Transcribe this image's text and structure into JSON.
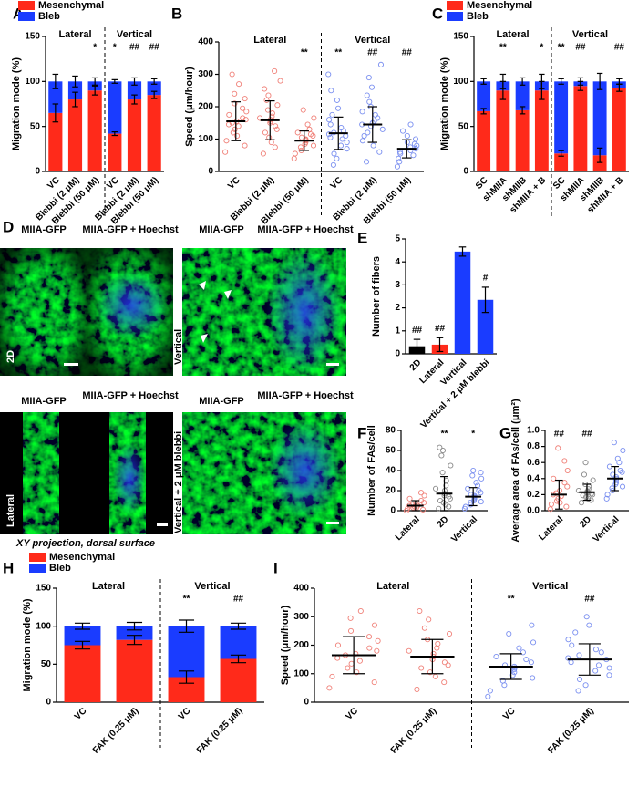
{
  "chart_data": [
    {
      "panel": "A",
      "type": "stacked_bar",
      "ylabel": "Migration mode (%)",
      "ylim": [
        0,
        150
      ],
      "yticks": [
        0,
        50,
        100,
        150
      ],
      "categories": [
        "VC",
        "Blebbi (2 μM)",
        "Blebbi (50 μM)",
        "VC",
        "Blebbi (2 μM)",
        "Blebbi (50 μM)"
      ],
      "group_labels": [
        "Lateral",
        "Vertical"
      ],
      "significance": [
        null,
        null,
        "*",
        "*",
        "##",
        "##"
      ],
      "legend": "top-left",
      "series": [
        {
          "name": "Mesenchymal",
          "color": "#ff2a1a",
          "values": [
            65,
            80,
            90,
            42,
            80,
            85
          ],
          "errors": [
            10,
            8,
            5,
            2,
            5,
            4
          ]
        },
        {
          "name": "Bleb",
          "color": "#1a3cff",
          "values": [
            35,
            20,
            10,
            58,
            20,
            15
          ],
          "errors": [
            8,
            6,
            4,
            2,
            4,
            3
          ]
        }
      ]
    },
    {
      "panel": "B",
      "type": "strip",
      "ylabel": "Speed (μm/hour)",
      "ylim": [
        0,
        400
      ],
      "yticks": [
        0,
        100,
        200,
        300,
        400
      ],
      "categories": [
        "VC",
        "Blebbi (2 μM)",
        "Blebbi (50 μM)",
        "VC",
        "Blebbi (2 μM)",
        "Blebbi (50 μM)"
      ],
      "group_labels": [
        "Lateral",
        "Vertical"
      ],
      "significance": [
        null,
        null,
        "**",
        "**",
        "##",
        "##"
      ],
      "colors": [
        "#f08078",
        "#f08078",
        "#f08078",
        "#7a8ff0",
        "#7a8ff0",
        "#7a8ff0"
      ],
      "means": [
        155,
        158,
        95,
        118,
        145,
        70
      ],
      "sds": [
        60,
        60,
        30,
        50,
        55,
        28
      ],
      "points": [
        [
          60,
          80,
          95,
          110,
          120,
          130,
          140,
          145,
          150,
          155,
          160,
          165,
          175,
          185,
          195,
          210,
          225,
          240,
          270,
          300
        ],
        [
          55,
          75,
          90,
          105,
          120,
          130,
          140,
          150,
          155,
          160,
          165,
          170,
          180,
          190,
          205,
          220,
          235,
          255,
          280,
          310
        ],
        [
          40,
          55,
          65,
          75,
          80,
          85,
          90,
          95,
          98,
          100,
          105,
          110,
          115,
          120,
          130,
          145,
          165,
          190
        ],
        [
          20,
          40,
          55,
          70,
          80,
          90,
          100,
          105,
          110,
          115,
          120,
          125,
          135,
          145,
          160,
          175,
          195,
          220,
          250,
          300
        ],
        [
          30,
          60,
          80,
          95,
          110,
          120,
          130,
          140,
          145,
          150,
          155,
          165,
          175,
          185,
          200,
          215,
          235,
          260,
          290,
          330
        ],
        [
          15,
          30,
          40,
          50,
          55,
          60,
          65,
          70,
          75,
          80,
          85,
          90,
          100,
          110,
          125,
          145
        ]
      ]
    },
    {
      "panel": "C",
      "type": "stacked_bar",
      "ylabel": "Migration mode (%)",
      "ylim": [
        0,
        150
      ],
      "yticks": [
        0,
        50,
        100,
        150
      ],
      "categories": [
        "SC",
        "shMIIA",
        "shMIIB",
        "shMIIA + B",
        "SC",
        "shMIIA",
        "shMIIB",
        "shMIIA + B"
      ],
      "group_labels": [
        "Lateral",
        "Vertical"
      ],
      "significance": [
        null,
        "**",
        null,
        "*",
        "**",
        "##",
        null,
        "##"
      ],
      "legend": "top-left",
      "series": [
        {
          "name": "Mesenchymal",
          "color": "#ff2a1a",
          "values": [
            67,
            90,
            68,
            90,
            20,
            95,
            18,
            93
          ],
          "errors": [
            3,
            10,
            4,
            10,
            3,
            5,
            8,
            4
          ]
        },
        {
          "name": "Bleb",
          "color": "#1a3cff",
          "values": [
            33,
            10,
            32,
            10,
            80,
            5,
            82,
            7
          ],
          "errors": [
            3,
            8,
            4,
            8,
            3,
            4,
            9,
            3
          ]
        }
      ]
    },
    {
      "panel": "E",
      "type": "bar",
      "ylabel": "Number of fibers",
      "ylim": [
        0,
        5
      ],
      "yticks": [
        0,
        1,
        2,
        3,
        4,
        5
      ],
      "categories": [
        "2D",
        "Lateral",
        "Vertical",
        "Vertical + 2 μM blebbi"
      ],
      "values": [
        0.33,
        0.4,
        4.45,
        2.35
      ],
      "errors": [
        0.3,
        0.3,
        0.2,
        0.55
      ],
      "colors": [
        "#000000",
        "#ff2a1a",
        "#1a3cff",
        "#1a3cff"
      ],
      "significance": [
        "##",
        "##",
        null,
        "#"
      ]
    },
    {
      "panel": "F",
      "type": "strip",
      "ylabel": "Number of FAs/cell",
      "ylim": [
        0,
        80
      ],
      "yticks": [
        0,
        20,
        40,
        60,
        80
      ],
      "categories": [
        "Lateral",
        "2D",
        "Vertical"
      ],
      "significance": [
        null,
        "**",
        "*"
      ],
      "colors": [
        "#f08078",
        "#888888",
        "#7a8ff0"
      ],
      "means": [
        5,
        17,
        14
      ],
      "sds": [
        5,
        17,
        9
      ],
      "points": [
        [
          0,
          1,
          2,
          3,
          3,
          4,
          5,
          5,
          6,
          7,
          8,
          10,
          12,
          15,
          18
        ],
        [
          2,
          4,
          6,
          8,
          10,
          12,
          14,
          15,
          17,
          20,
          22,
          25,
          30,
          38,
          45,
          55,
          60,
          63
        ],
        [
          2,
          4,
          6,
          8,
          9,
          10,
          12,
          13,
          14,
          15,
          16,
          18,
          20,
          22,
          25,
          28,
          32,
          35,
          38,
          40
        ]
      ]
    },
    {
      "panel": "G",
      "type": "strip",
      "ylabel": "Average area of FAs/cell (μm²)",
      "ylim": [
        0,
        1
      ],
      "yticks": [
        {
          "value": 0,
          "label": "0.0"
        },
        0.2,
        0.4,
        0.6,
        0.8,
        {
          "value": 1,
          "label": "1.0"
        }
      ],
      "categories": [
        "Lateral",
        "2D",
        "Vertical"
      ],
      "significance": [
        "##",
        "##",
        null
      ],
      "colors": [
        "#f08078",
        "#888888",
        "#7a8ff0"
      ],
      "means": [
        0.2,
        0.23,
        0.4
      ],
      "sds": [
        0.18,
        0.1,
        0.15
      ],
      "points": [
        [
          0.02,
          0.05,
          0.08,
          0.1,
          0.12,
          0.15,
          0.18,
          0.2,
          0.22,
          0.25,
          0.3,
          0.35,
          0.4,
          0.5,
          0.62,
          0.78
        ],
        [
          0.1,
          0.13,
          0.15,
          0.17,
          0.19,
          0.2,
          0.21,
          0.22,
          0.23,
          0.24,
          0.25,
          0.27,
          0.3,
          0.33,
          0.38,
          0.45,
          0.6
        ],
        [
          0.15,
          0.2,
          0.25,
          0.28,
          0.3,
          0.33,
          0.35,
          0.38,
          0.4,
          0.42,
          0.45,
          0.48,
          0.5,
          0.55,
          0.6,
          0.65,
          0.75,
          0.85
        ]
      ]
    },
    {
      "panel": "H",
      "type": "stacked_bar",
      "ylabel": "Migration mode (%)",
      "ylim": [
        0,
        150
      ],
      "yticks": [
        0,
        50,
        100,
        150
      ],
      "categories": [
        "VC",
        "FAK (0.25 μM)",
        "VC",
        "FAK (0.25 μM)"
      ],
      "group_labels": [
        "Lateral",
        "Vertical"
      ],
      "significance": [
        null,
        null,
        "**",
        "##"
      ],
      "legend": "top-left",
      "series": [
        {
          "name": "Mesenchymal",
          "color": "#ff2a1a",
          "values": [
            75,
            82,
            33,
            57
          ],
          "errors": [
            5,
            6,
            8,
            5
          ]
        },
        {
          "name": "Bleb",
          "color": "#1a3cff",
          "values": [
            25,
            18,
            67,
            43
          ],
          "errors": [
            4,
            5,
            8,
            4
          ]
        }
      ]
    },
    {
      "panel": "I",
      "type": "strip",
      "ylabel": "Speed (μm/hour)",
      "ylim": [
        0,
        400
      ],
      "yticks": [
        0,
        100,
        200,
        300,
        400
      ],
      "categories": [
        "VC",
        "FAK (0.25 μM)",
        "VC",
        "FAK (0.25 μM)"
      ],
      "group_labels": [
        "Lateral",
        "Vertical"
      ],
      "significance": [
        null,
        null,
        "**",
        "##"
      ],
      "colors": [
        "#f08078",
        "#f08078",
        "#7a8ff0",
        "#7a8ff0"
      ],
      "means": [
        165,
        160,
        125,
        150
      ],
      "sds": [
        65,
        60,
        45,
        55
      ],
      "points": [
        [
          50,
          70,
          90,
          105,
          120,
          135,
          145,
          155,
          165,
          170,
          180,
          190,
          200,
          215,
          230,
          250,
          270,
          295,
          320
        ],
        [
          45,
          70,
          90,
          105,
          120,
          130,
          140,
          150,
          160,
          170,
          180,
          190,
          205,
          220,
          240,
          260,
          290,
          320
        ],
        [
          20,
          40,
          60,
          75,
          85,
          95,
          105,
          115,
          120,
          125,
          130,
          140,
          150,
          160,
          175,
          190,
          210,
          240,
          270
        ],
        [
          40,
          60,
          80,
          95,
          110,
          120,
          130,
          140,
          150,
          155,
          165,
          175,
          185,
          200,
          220,
          245,
          270,
          300
        ]
      ]
    }
  ],
  "panel_d": {
    "panel": "D",
    "caption": "XY projection, dorsal surface",
    "images": [
      {
        "titles": [
          "MIIA-GFP",
          "MIIA-GFP + Hoechst"
        ],
        "label": "2D"
      },
      {
        "titles": [
          "MIIA-GFP",
          "MIIA-GFP + Hoechst"
        ],
        "label": "Vertical"
      },
      {
        "titles": [
          "MIIA-GFP",
          "MIIA-GFP + Hoechst"
        ],
        "label": "Lateral"
      },
      {
        "titles": [
          "MIIA-GFP",
          "MIIA-GFP + Hoechst"
        ],
        "label": "Vertical + 2 μM blebbi"
      }
    ]
  }
}
